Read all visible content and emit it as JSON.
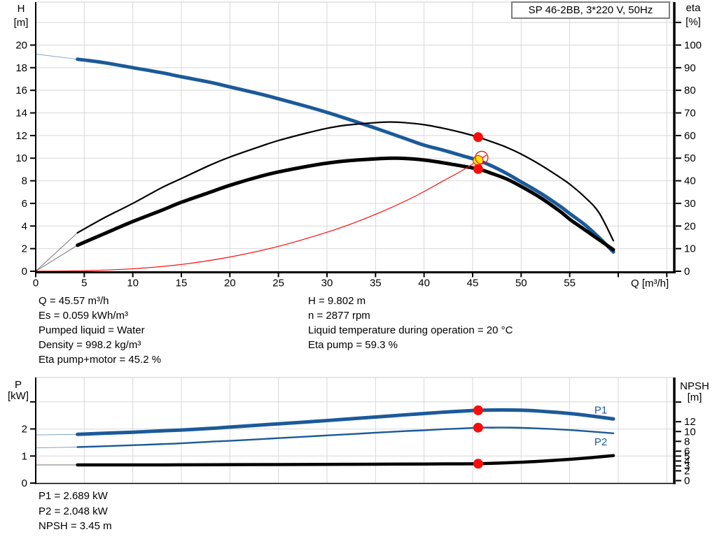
{
  "title_box": "SP 46-2BB, 3*220 V, 50Hz",
  "labels": {
    "h_axis": [
      "H",
      "[m]"
    ],
    "eta_axis": [
      "eta",
      "[%]"
    ],
    "p_axis": [
      "P",
      "[kW]"
    ],
    "npsh_axis": [
      "NPSH",
      "[m]"
    ],
    "q_axis": "Q [m³/h]"
  },
  "operating_point": {
    "left": [
      "Q = 45.57 m³/h",
      "Es = 0.059 kWh/m³",
      "Pumped liquid = Water",
      "Density = 998.2 kg/m³",
      "Eta pump+motor = 45.2 %"
    ],
    "right": [
      "H = 9.802 m",
      "n = 2877 rpm",
      "Liquid temperature during operation = 20 °C",
      "Eta pump = 59.3 %"
    ],
    "bottom": [
      "P1 = 2.689 kW",
      "P2 = 2.048 kW",
      "NPSH = 3.45 m"
    ]
  },
  "colors": {
    "blue": "#1b5a99",
    "black": "#000000",
    "red": "#f90d0d",
    "yellow": "#ffe60a",
    "grid": "#d8d8d8",
    "axis": "#000000",
    "box_border": "#7f7f7f"
  },
  "chart_data": [
    {
      "type": "line",
      "title": "SP 46-2BB, 3*220 V, 50Hz",
      "x_axis": {
        "label": "Q [m³/h]",
        "min": 0,
        "max": 65.7,
        "grid_step": 5,
        "ticks_labeled": [
          0,
          5,
          10,
          15,
          20,
          25,
          30,
          35,
          40,
          45,
          50,
          55
        ],
        "ticks_unlabeled": [
          60,
          65
        ]
      },
      "y_left": {
        "label": "H [m]",
        "min": 0,
        "max": 23.8,
        "ticks_labeled": [
          0,
          2,
          4,
          6,
          8,
          10,
          12,
          14,
          16,
          18,
          20
        ],
        "ticks_unlabeled": [],
        "gridlines": [
          2,
          4,
          6,
          8,
          10,
          12,
          14,
          16,
          18,
          20,
          22
        ]
      },
      "y_right": {
        "label": "eta [%]",
        "min": 0,
        "max": 119,
        "ticks_labeled": [
          0,
          10,
          20,
          30,
          40,
          50,
          60,
          70,
          80,
          90,
          100
        ],
        "ticks_unlabeled": [
          110
        ]
      },
      "duty_point": {
        "Q_m3h": 45.57,
        "H_m": 9.802,
        "eta_pump_pct": 59.3,
        "eta_pump_motor_pct": 45.2
      },
      "series": [
        {
          "name": "head-curve",
          "axis": "left",
          "color": "blue",
          "width": 5,
          "thin_points": [
            [
              0,
              19.2
            ],
            [
              4.3,
              18.75
            ]
          ],
          "points": [
            [
              4.3,
              18.75
            ],
            [
              7,
              18.45
            ],
            [
              10,
              18.0
            ],
            [
              13,
              17.55
            ],
            [
              15,
              17.2
            ],
            [
              18,
              16.7
            ],
            [
              20,
              16.3
            ],
            [
              23,
              15.7
            ],
            [
              25,
              15.25
            ],
            [
              28,
              14.55
            ],
            [
              30,
              14.05
            ],
            [
              32,
              13.5
            ],
            [
              35,
              12.65
            ],
            [
              38,
              11.75
            ],
            [
              40,
              11.15
            ],
            [
              42,
              10.7
            ],
            [
              44,
              10.2
            ],
            [
              45.57,
              9.802
            ],
            [
              47,
              9.3
            ],
            [
              48.5,
              8.65
            ],
            [
              50,
              7.9
            ],
            [
              52,
              6.9
            ],
            [
              54,
              5.75
            ],
            [
              55,
              5.1
            ],
            [
              56.5,
              4.15
            ],
            [
              58,
              3.0
            ],
            [
              59.5,
              1.7
            ]
          ]
        },
        {
          "name": "eta-pump-curve",
          "axis": "right",
          "color": "black",
          "width": 2.2,
          "thin_points": [
            [
              0,
              0
            ],
            [
              4.3,
              17
            ]
          ],
          "points": [
            [
              4.3,
              17
            ],
            [
              7,
              23.5
            ],
            [
              10,
              30
            ],
            [
              13,
              37
            ],
            [
              15,
              41
            ],
            [
              18,
              47
            ],
            [
              20,
              50.5
            ],
            [
              23,
              55
            ],
            [
              25,
              57.8
            ],
            [
              28,
              61.2
            ],
            [
              30,
              63.2
            ],
            [
              32,
              64.6
            ],
            [
              35,
              65.7
            ],
            [
              36.5,
              66
            ],
            [
              38,
              65.7
            ],
            [
              40,
              64.8
            ],
            [
              42,
              63.2
            ],
            [
              44,
              61.2
            ],
            [
              45.57,
              59.3
            ],
            [
              47,
              57.2
            ],
            [
              48.5,
              54.8
            ],
            [
              50,
              51.8
            ],
            [
              52,
              47
            ],
            [
              54,
              41.5
            ],
            [
              55,
              38.5
            ],
            [
              56.5,
              33
            ],
            [
              58,
              26
            ],
            [
              59.5,
              13.5
            ]
          ]
        },
        {
          "name": "eta-pump-motor-curve",
          "axis": "right",
          "color": "black",
          "width": 5,
          "thin_points": [
            [
              0,
              0
            ],
            [
              4.3,
              11.5
            ]
          ],
          "points": [
            [
              4.3,
              11.5
            ],
            [
              7,
              16.5
            ],
            [
              10,
              22
            ],
            [
              13,
              27
            ],
            [
              15,
              30.5
            ],
            [
              18,
              35
            ],
            [
              20,
              38
            ],
            [
              23,
              41.8
            ],
            [
              25,
              43.9
            ],
            [
              28,
              46.4
            ],
            [
              30,
              47.8
            ],
            [
              32,
              48.8
            ],
            [
              35,
              49.7
            ],
            [
              37,
              50
            ],
            [
              39,
              49.6
            ],
            [
              41,
              48.6
            ],
            [
              43,
              47.2
            ],
            [
              45.57,
              45.2
            ],
            [
              47,
              43.2
            ],
            [
              48.5,
              40.8
            ],
            [
              50,
              37.5
            ],
            [
              52,
              32.5
            ],
            [
              54,
              26.5
            ],
            [
              55,
              23
            ],
            [
              56.5,
              18.5
            ],
            [
              58,
              14
            ],
            [
              59.5,
              9.5
            ]
          ]
        },
        {
          "name": "system-curve",
          "axis": "left",
          "color": "red",
          "width": 1.2,
          "thin_points": [],
          "points": [
            [
              0,
              0
            ],
            [
              5,
              0.05
            ],
            [
              10,
              0.22
            ],
            [
              15,
              0.6
            ],
            [
              20,
              1.26
            ],
            [
              25,
              2.2
            ],
            [
              30,
              3.45
            ],
            [
              33,
              4.35
            ],
            [
              36,
              5.4
            ],
            [
              39,
              6.6
            ],
            [
              42,
              8.0
            ],
            [
              44,
              8.95
            ],
            [
              45.57,
              9.802
            ],
            [
              46.4,
              10.25
            ]
          ]
        }
      ],
      "markers": [
        {
          "name": "duty-point-eta-pump",
          "axis": "right",
          "style": "red-dot",
          "x": 45.57,
          "y": 59.3
        },
        {
          "name": "duty-point-head",
          "axis": "left",
          "style": "yellow-dot",
          "x": 45.57,
          "y": 9.802
        },
        {
          "name": "duty-point-head-ring",
          "axis": "left",
          "style": "red-ring",
          "x": 45.57,
          "y": 9.802,
          "dx": 5,
          "dy": -4
        },
        {
          "name": "duty-point-eta-pump-motor",
          "axis": "right",
          "style": "red-dot",
          "x": 45.57,
          "y": 45.2
        }
      ],
      "curve_labels": []
    },
    {
      "type": "line",
      "title": "",
      "x_axis": {
        "label": "",
        "min": 0,
        "max": 65.7,
        "grid_step": 5,
        "ticks_labeled": [],
        "ticks_unlabeled": []
      },
      "y_left": {
        "label": "P [kW]",
        "min": 0,
        "max": 3.9,
        "ticks_labeled": [
          0,
          1,
          2
        ],
        "ticks_unlabeled": [
          3
        ],
        "gridlines": [
          1,
          2,
          3
        ]
      },
      "y_right": {
        "label": "NPSH [m]",
        "min": 0,
        "max": 21,
        "ticks_labeled": [
          0,
          2,
          3,
          4,
          5,
          6,
          8,
          10,
          12
        ],
        "ticks_unlabeled": [
          16
        ]
      },
      "duty_point": {
        "Q_m3h": 45.57,
        "P1_kW": 2.689,
        "P2_kW": 2.048,
        "NPSH_m": 3.45
      },
      "series": [
        {
          "name": "p1-curve",
          "axis": "left",
          "color": "blue",
          "width": 5,
          "thin_points": [
            [
              0,
              1.78
            ],
            [
              4.3,
              1.8
            ]
          ],
          "points": [
            [
              4.3,
              1.8
            ],
            [
              7,
              1.84
            ],
            [
              10,
              1.88
            ],
            [
              13,
              1.93
            ],
            [
              15,
              1.96
            ],
            [
              18,
              2.02
            ],
            [
              20,
              2.07
            ],
            [
              23,
              2.14
            ],
            [
              25,
              2.19
            ],
            [
              28,
              2.26
            ],
            [
              30,
              2.31
            ],
            [
              33,
              2.39
            ],
            [
              35,
              2.44
            ],
            [
              38,
              2.52
            ],
            [
              40,
              2.57
            ],
            [
              42,
              2.62
            ],
            [
              44,
              2.66
            ],
            [
              45.57,
              2.689
            ],
            [
              47,
              2.7
            ],
            [
              49,
              2.7
            ],
            [
              51,
              2.68
            ],
            [
              53,
              2.63
            ],
            [
              55,
              2.57
            ],
            [
              57,
              2.49
            ],
            [
              59.5,
              2.37
            ]
          ]
        },
        {
          "name": "p2-curve",
          "axis": "left",
          "color": "blue",
          "width": 2.4,
          "thin_points": [
            [
              0,
              1.3
            ],
            [
              4.3,
              1.33
            ]
          ],
          "points": [
            [
              4.3,
              1.33
            ],
            [
              7,
              1.36
            ],
            [
              10,
              1.4
            ],
            [
              13,
              1.44
            ],
            [
              15,
              1.47
            ],
            [
              18,
              1.53
            ],
            [
              20,
              1.56
            ],
            [
              23,
              1.62
            ],
            [
              25,
              1.66
            ],
            [
              28,
              1.72
            ],
            [
              30,
              1.76
            ],
            [
              33,
              1.82
            ],
            [
              35,
              1.86
            ],
            [
              38,
              1.92
            ],
            [
              40,
              1.95
            ],
            [
              42,
              1.99
            ],
            [
              44,
              2.02
            ],
            [
              45.57,
              2.048
            ],
            [
              47,
              2.05
            ],
            [
              49,
              2.05
            ],
            [
              51,
              2.03
            ],
            [
              53,
              2.0
            ],
            [
              55,
              1.96
            ],
            [
              57,
              1.91
            ],
            [
              59.5,
              1.84
            ]
          ]
        },
        {
          "name": "npsh-curve",
          "axis": "right",
          "color": "black",
          "width": 4.5,
          "thin_points": [
            [
              0,
              3.2
            ],
            [
              4.3,
              3.2
            ]
          ],
          "points": [
            [
              4.3,
              3.2
            ],
            [
              10,
              3.2
            ],
            [
              15,
              3.22
            ],
            [
              20,
              3.25
            ],
            [
              25,
              3.28
            ],
            [
              30,
              3.31
            ],
            [
              35,
              3.34
            ],
            [
              40,
              3.39
            ],
            [
              43,
              3.42
            ],
            [
              45.57,
              3.45
            ],
            [
              48,
              3.6
            ],
            [
              50,
              3.75
            ],
            [
              52,
              3.95
            ],
            [
              55,
              4.35
            ],
            [
              57,
              4.65
            ],
            [
              59.5,
              5.1
            ]
          ]
        }
      ],
      "markers": [
        {
          "name": "duty-point-p1",
          "axis": "left",
          "style": "red-dot",
          "x": 45.57,
          "y": 2.689
        },
        {
          "name": "duty-point-p2",
          "axis": "left",
          "style": "red-dot",
          "x": 45.57,
          "y": 2.048
        },
        {
          "name": "duty-point-npsh",
          "axis": "right",
          "style": "red-dot",
          "x": 45.57,
          "y": 3.45
        }
      ],
      "curve_labels": [
        {
          "text": "P1",
          "axis": "left",
          "x": 58.2,
          "y": 2.7
        },
        {
          "text": "P2",
          "axis": "left",
          "x": 58.2,
          "y": 1.52
        }
      ]
    }
  ]
}
